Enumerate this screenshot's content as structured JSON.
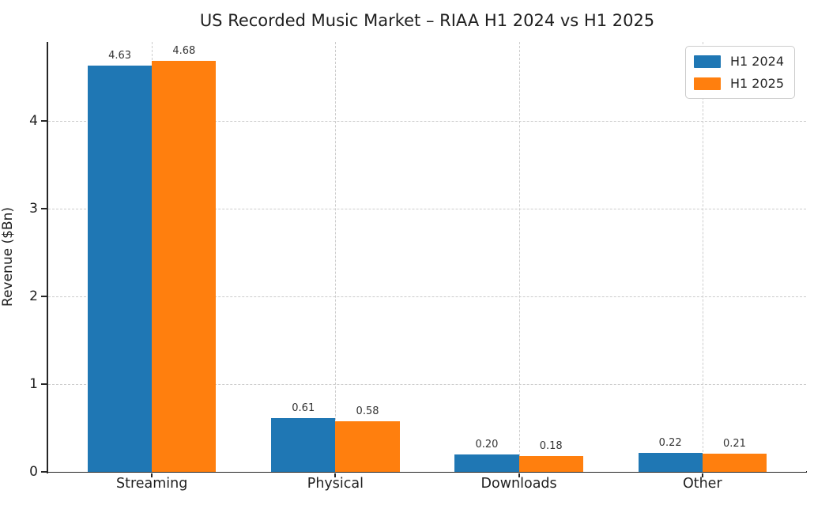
{
  "chart_data": {
    "type": "bar",
    "title": "US Recorded Music Market – RIAA H1 2024 vs H1 2025",
    "xlabel": "",
    "ylabel": "Revenue ($Bn)",
    "categories": [
      "Streaming",
      "Physical",
      "Downloads",
      "Other"
    ],
    "series": [
      {
        "name": "H1 2024",
        "color": "#1f77b4",
        "values": [
          4.63,
          0.61,
          0.2,
          0.22
        ]
      },
      {
        "name": "H1 2025",
        "color": "#ff7f0e",
        "values": [
          4.68,
          0.58,
          0.18,
          0.21
        ]
      }
    ],
    "value_label_decimals": 2,
    "ylim": [
      0,
      4.9
    ],
    "yticks": [
      0,
      1,
      2,
      3,
      4
    ],
    "grid": "both-dashed",
    "grid_color": "#cccccc",
    "legend_position": "upper right",
    "spine_color": "#262626",
    "background_color": "#ffffff"
  }
}
